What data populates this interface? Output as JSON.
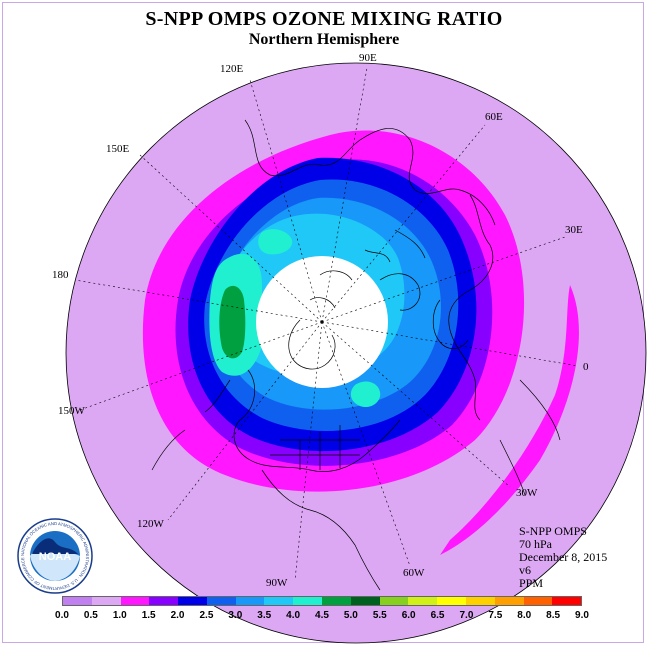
{
  "title": "S-NPP OMPS OZONE MIXING RATIO",
  "subtitle": "Northern Hemisphere",
  "logo": {
    "text": "NOAA",
    "ring_text": "NATIONAL OCEANIC AND ATMOSPHERIC ADMINISTRATION · U.S. DEPARTMENT OF COMMERCE"
  },
  "longitude_labels": [
    "90E",
    "60E",
    "30E",
    "0",
    "30W",
    "60W",
    "90W",
    "120W",
    "150W",
    "180",
    "150E",
    "120E"
  ],
  "info": {
    "instrument": "S-NPP OMPS",
    "level": "70 hPa",
    "date": "December 8, 2015",
    "version": "v6",
    "units": "PPM"
  },
  "colorbar": {
    "ticks": [
      "0.0",
      "0.5",
      "1.0",
      "1.5",
      "2.0",
      "2.5",
      "3.0",
      "3.5",
      "4.0",
      "4.5",
      "5.0",
      "5.5",
      "6.0",
      "6.5",
      "7.0",
      "7.5",
      "8.0",
      "8.5",
      "9.0"
    ],
    "colors": [
      "#c080f0",
      "#dca8f4",
      "#ff18ff",
      "#8800ff",
      "#0000e8",
      "#1060f0",
      "#1898f8",
      "#20c8f8",
      "#20f0d0",
      "#00a040",
      "#006020",
      "#88d020",
      "#d0f018",
      "#ffff00",
      "#ffd000",
      "#ffa000",
      "#ff6000",
      "#ff0000",
      "#804020"
    ]
  },
  "chart_data": {
    "type": "heatmap",
    "title": "S-NPP OMPS OZONE MIXING RATIO",
    "subtitle": "Northern Hemisphere",
    "projection": "north polar stereographic",
    "variable": "ozone mixing ratio",
    "level": "70 hPa",
    "date": "December 8, 2015",
    "units": "PPM",
    "color_levels": [
      0.0,
      0.5,
      1.0,
      1.5,
      2.0,
      2.5,
      3.0,
      3.5,
      4.0,
      4.5,
      5.0,
      5.5,
      6.0,
      6.5,
      7.0,
      7.5,
      8.0,
      8.5,
      9.0
    ],
    "observed_range": [
      0.5,
      5.0
    ],
    "polar_night_missing": true
  }
}
